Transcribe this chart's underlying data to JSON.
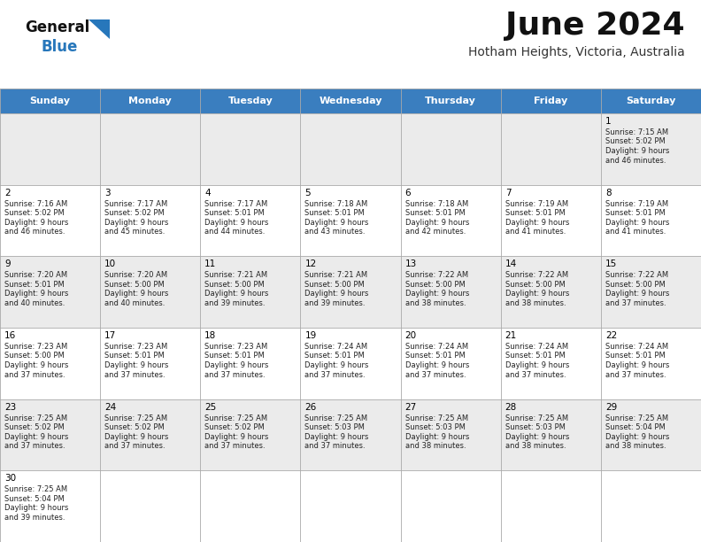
{
  "title": "June 2024",
  "subtitle": "Hotham Heights, Victoria, Australia",
  "header_color": "#3a7ebf",
  "header_text_color": "#ffffff",
  "day_names": [
    "Sunday",
    "Monday",
    "Tuesday",
    "Wednesday",
    "Thursday",
    "Friday",
    "Saturday"
  ],
  "bg_color": "#ffffff",
  "cell_bg_even": "#ebebeb",
  "cell_bg_odd": "#ffffff",
  "border_color": "#aaaaaa",
  "number_color": "#000000",
  "text_color": "#222222",
  "logo_general_color": "#111111",
  "logo_blue_color": "#2777bb",
  "logo_triangle_color": "#2777bb",
  "days": [
    {
      "day": 1,
      "col": 6,
      "row": 0,
      "sunrise": "7:15 AM",
      "sunset": "5:02 PM",
      "daylight": "9 hours and 46 minutes."
    },
    {
      "day": 2,
      "col": 0,
      "row": 1,
      "sunrise": "7:16 AM",
      "sunset": "5:02 PM",
      "daylight": "9 hours and 46 minutes."
    },
    {
      "day": 3,
      "col": 1,
      "row": 1,
      "sunrise": "7:17 AM",
      "sunset": "5:02 PM",
      "daylight": "9 hours and 45 minutes."
    },
    {
      "day": 4,
      "col": 2,
      "row": 1,
      "sunrise": "7:17 AM",
      "sunset": "5:01 PM",
      "daylight": "9 hours and 44 minutes."
    },
    {
      "day": 5,
      "col": 3,
      "row": 1,
      "sunrise": "7:18 AM",
      "sunset": "5:01 PM",
      "daylight": "9 hours and 43 minutes."
    },
    {
      "day": 6,
      "col": 4,
      "row": 1,
      "sunrise": "7:18 AM",
      "sunset": "5:01 PM",
      "daylight": "9 hours and 42 minutes."
    },
    {
      "day": 7,
      "col": 5,
      "row": 1,
      "sunrise": "7:19 AM",
      "sunset": "5:01 PM",
      "daylight": "9 hours and 41 minutes."
    },
    {
      "day": 8,
      "col": 6,
      "row": 1,
      "sunrise": "7:19 AM",
      "sunset": "5:01 PM",
      "daylight": "9 hours and 41 minutes."
    },
    {
      "day": 9,
      "col": 0,
      "row": 2,
      "sunrise": "7:20 AM",
      "sunset": "5:01 PM",
      "daylight": "9 hours and 40 minutes."
    },
    {
      "day": 10,
      "col": 1,
      "row": 2,
      "sunrise": "7:20 AM",
      "sunset": "5:00 PM",
      "daylight": "9 hours and 40 minutes."
    },
    {
      "day": 11,
      "col": 2,
      "row": 2,
      "sunrise": "7:21 AM",
      "sunset": "5:00 PM",
      "daylight": "9 hours and 39 minutes."
    },
    {
      "day": 12,
      "col": 3,
      "row": 2,
      "sunrise": "7:21 AM",
      "sunset": "5:00 PM",
      "daylight": "9 hours and 39 minutes."
    },
    {
      "day": 13,
      "col": 4,
      "row": 2,
      "sunrise": "7:22 AM",
      "sunset": "5:00 PM",
      "daylight": "9 hours and 38 minutes."
    },
    {
      "day": 14,
      "col": 5,
      "row": 2,
      "sunrise": "7:22 AM",
      "sunset": "5:00 PM",
      "daylight": "9 hours and 38 minutes."
    },
    {
      "day": 15,
      "col": 6,
      "row": 2,
      "sunrise": "7:22 AM",
      "sunset": "5:00 PM",
      "daylight": "9 hours and 37 minutes."
    },
    {
      "day": 16,
      "col": 0,
      "row": 3,
      "sunrise": "7:23 AM",
      "sunset": "5:00 PM",
      "daylight": "9 hours and 37 minutes."
    },
    {
      "day": 17,
      "col": 1,
      "row": 3,
      "sunrise": "7:23 AM",
      "sunset": "5:01 PM",
      "daylight": "9 hours and 37 minutes."
    },
    {
      "day": 18,
      "col": 2,
      "row": 3,
      "sunrise": "7:23 AM",
      "sunset": "5:01 PM",
      "daylight": "9 hours and 37 minutes."
    },
    {
      "day": 19,
      "col": 3,
      "row": 3,
      "sunrise": "7:24 AM",
      "sunset": "5:01 PM",
      "daylight": "9 hours and 37 minutes."
    },
    {
      "day": 20,
      "col": 4,
      "row": 3,
      "sunrise": "7:24 AM",
      "sunset": "5:01 PM",
      "daylight": "9 hours and 37 minutes."
    },
    {
      "day": 21,
      "col": 5,
      "row": 3,
      "sunrise": "7:24 AM",
      "sunset": "5:01 PM",
      "daylight": "9 hours and 37 minutes."
    },
    {
      "day": 22,
      "col": 6,
      "row": 3,
      "sunrise": "7:24 AM",
      "sunset": "5:01 PM",
      "daylight": "9 hours and 37 minutes."
    },
    {
      "day": 23,
      "col": 0,
      "row": 4,
      "sunrise": "7:25 AM",
      "sunset": "5:02 PM",
      "daylight": "9 hours and 37 minutes."
    },
    {
      "day": 24,
      "col": 1,
      "row": 4,
      "sunrise": "7:25 AM",
      "sunset": "5:02 PM",
      "daylight": "9 hours and 37 minutes."
    },
    {
      "day": 25,
      "col": 2,
      "row": 4,
      "sunrise": "7:25 AM",
      "sunset": "5:02 PM",
      "daylight": "9 hours and 37 minutes."
    },
    {
      "day": 26,
      "col": 3,
      "row": 4,
      "sunrise": "7:25 AM",
      "sunset": "5:03 PM",
      "daylight": "9 hours and 37 minutes."
    },
    {
      "day": 27,
      "col": 4,
      "row": 4,
      "sunrise": "7:25 AM",
      "sunset": "5:03 PM",
      "daylight": "9 hours and 38 minutes."
    },
    {
      "day": 28,
      "col": 5,
      "row": 4,
      "sunrise": "7:25 AM",
      "sunset": "5:03 PM",
      "daylight": "9 hours and 38 minutes."
    },
    {
      "day": 29,
      "col": 6,
      "row": 4,
      "sunrise": "7:25 AM",
      "sunset": "5:04 PM",
      "daylight": "9 hours and 38 minutes."
    },
    {
      "day": 30,
      "col": 0,
      "row": 5,
      "sunrise": "7:25 AM",
      "sunset": "5:04 PM",
      "daylight": "9 hours and 39 minutes."
    }
  ]
}
